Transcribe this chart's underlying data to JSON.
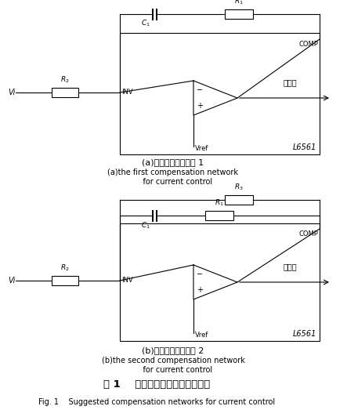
{
  "bg_color": "#ffffff",
  "lc": "#000000",
  "caption_a_cn": "(a)电流控制补偿方案 1",
  "caption_a_en1": "(a)the first compensation network",
  "caption_a_en2": "    for current control",
  "caption_b_cn": "(b)电流控制补偿方案 2",
  "caption_b_en1": "(b)the second compensation network",
  "caption_b_en2": "    for current control",
  "title_cn": "图 1    常用的电流控制的补偿方法",
  "title_en": "Fig. 1    Suggested compensation networks for current control"
}
